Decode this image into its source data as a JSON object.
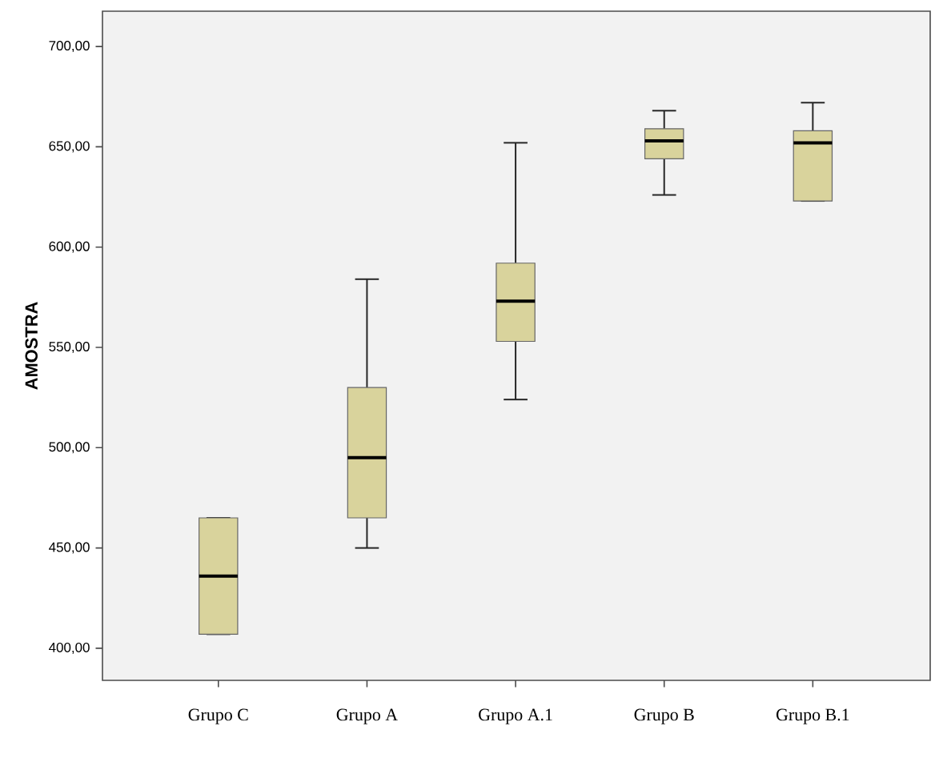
{
  "chart_data": {
    "type": "box",
    "ylabel": "AMOSTRA",
    "categories": [
      "Grupo C",
      "Grupo A",
      "Grupo A.1",
      "Grupo B",
      "Grupo B.1"
    ],
    "color": "#d9d39c",
    "boxes": [
      {
        "low": 407,
        "q1": 407,
        "median": 436,
        "q3": 465,
        "high": 465
      },
      {
        "low": 450,
        "q1": 465,
        "median": 495,
        "q3": 530,
        "high": 584
      },
      {
        "low": 524,
        "q1": 553,
        "median": 573,
        "q3": 592,
        "high": 652
      },
      {
        "low": 626,
        "q1": 644,
        "median": 653,
        "q3": 659,
        "high": 668
      },
      {
        "low": 623,
        "q1": 623,
        "median": 652,
        "q3": 658,
        "high": 672
      }
    ],
    "ylim": [
      384,
      717.6
    ],
    "yticks": [
      {
        "value": 400,
        "label": "400,00"
      },
      {
        "value": 450,
        "label": "450,00"
      },
      {
        "value": 500,
        "label": "500,00"
      },
      {
        "value": 550,
        "label": "550,00"
      },
      {
        "value": 600,
        "label": "600,00"
      },
      {
        "value": 650,
        "label": "650,00"
      },
      {
        "value": 700,
        "label": "700,00"
      }
    ]
  }
}
